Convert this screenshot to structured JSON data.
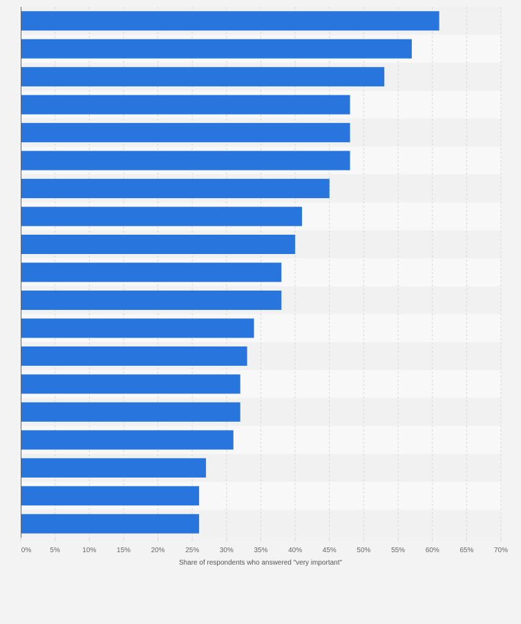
{
  "chart_data": {
    "type": "bar",
    "orientation": "horizontal",
    "categories": [
      "",
      "",
      "",
      "",
      "",
      "",
      "",
      "",
      "",
      "",
      "",
      "",
      "",
      "",
      "",
      "",
      "",
      "",
      ""
    ],
    "values": [
      61,
      57,
      53,
      48,
      48,
      48,
      45,
      41,
      40,
      38,
      38,
      34,
      33,
      32,
      32,
      31,
      27,
      26,
      26
    ],
    "xlabel": "Share of respondents who answered \"very important\"",
    "xlim": [
      0,
      70
    ],
    "xticks": [
      0,
      5,
      10,
      15,
      20,
      25,
      30,
      35,
      40,
      45,
      50,
      55,
      60,
      65,
      70
    ],
    "xtick_labels": [
      "0%",
      "5%",
      "10%",
      "15%",
      "20%",
      "25%",
      "30%",
      "35%",
      "40%",
      "45%",
      "50%",
      "55%",
      "60%",
      "65%",
      "70%"
    ],
    "grid": true,
    "colors": {
      "bar": "#2876dd",
      "background": "#f3f3f3",
      "band_light": "#f8f8f8",
      "band_dark": "#f1f1f1",
      "grid": "#d7d7d7",
      "axis": "#666666"
    }
  }
}
